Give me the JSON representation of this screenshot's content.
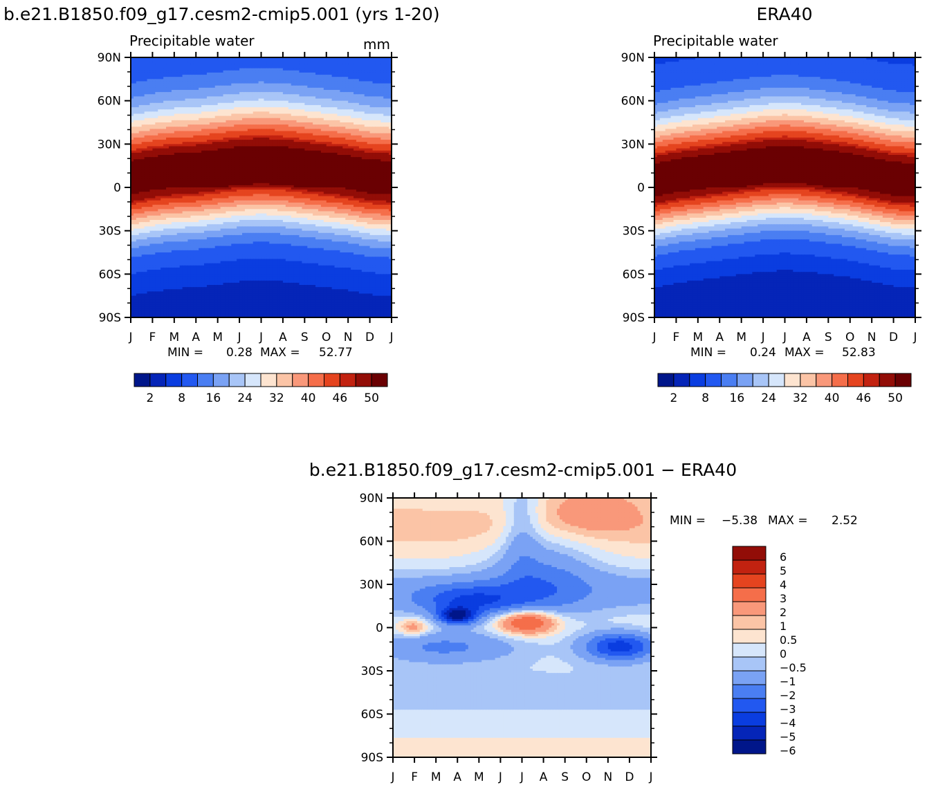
{
  "chart_data": [
    {
      "type": "heatmap",
      "title": "b.e21.B1850.f09_g17.cesm2-cmip5.001 (yrs 1-20)",
      "subtitle": "Precipitable water",
      "units": "mm",
      "x_ticks": [
        "J",
        "F",
        "M",
        "A",
        "M",
        "J",
        "J",
        "A",
        "S",
        "O",
        "N",
        "D",
        "J"
      ],
      "y_ticks": [
        "90N",
        "60N",
        "30N",
        "0",
        "30S",
        "60S",
        "90S"
      ],
      "y_range": [
        -90,
        90
      ],
      "min_label": "MIN =",
      "min_value": "0.28",
      "max_label": "MAX =",
      "max_value": "52.77",
      "field": {
        "peak_lat": [
          4,
          7,
          9,
          10,
          12,
          14,
          15,
          14,
          12,
          10,
          8,
          5,
          4
        ],
        "amp": 51.5,
        "north_width": 30,
        "south_width": 26,
        "polar_north": 4,
        "polar_south": 1.5
      },
      "colorbar": {
        "colors": [
          "#00168a",
          "#0525b8",
          "#0a3de0",
          "#2258f0",
          "#4a7ef2",
          "#7aa2f4",
          "#a8c5f7",
          "#d6e6fb",
          "#fde4d0",
          "#fbc4a6",
          "#f9987a",
          "#f56e4a",
          "#e5441f",
          "#c22210",
          "#920d07",
          "#6a0002"
        ],
        "thresholds": [
          1,
          2,
          4,
          8,
          12,
          16,
          20,
          24,
          28,
          32,
          36,
          40,
          44,
          46,
          50
        ],
        "tick_labels": [
          "2",
          "8",
          "16",
          "24",
          "32",
          "40",
          "46",
          "50"
        ]
      }
    },
    {
      "type": "heatmap",
      "title": "ERA40",
      "subtitle": "Precipitable water",
      "x_ticks": [
        "J",
        "F",
        "M",
        "A",
        "M",
        "J",
        "J",
        "A",
        "S",
        "O",
        "N",
        "D",
        "J"
      ],
      "y_ticks": [
        "90N",
        "60N",
        "30N",
        "0",
        "30S",
        "60S",
        "90S"
      ],
      "y_range": [
        -90,
        90
      ],
      "min_label": "MIN =",
      "min_value": "0.24",
      "max_label": "MAX =",
      "max_value": "52.83",
      "field": {
        "peak_lat": [
          3,
          6,
          8,
          10,
          12,
          14,
          15,
          14,
          12,
          10,
          7,
          4,
          3
        ],
        "amp": 52.5,
        "north_width": 29,
        "south_width": 25,
        "polar_north": 3,
        "polar_south": 1.2
      },
      "colorbar": {
        "colors": [
          "#00168a",
          "#0525b8",
          "#0a3de0",
          "#2258f0",
          "#4a7ef2",
          "#7aa2f4",
          "#a8c5f7",
          "#d6e6fb",
          "#fde4d0",
          "#fbc4a6",
          "#f9987a",
          "#f56e4a",
          "#e5441f",
          "#c22210",
          "#920d07",
          "#6a0002"
        ],
        "thresholds": [
          1,
          2,
          4,
          8,
          12,
          16,
          20,
          24,
          28,
          32,
          36,
          40,
          44,
          46,
          50
        ],
        "tick_labels": [
          "2",
          "8",
          "16",
          "24",
          "32",
          "40",
          "46",
          "50"
        ]
      }
    },
    {
      "type": "heatmap",
      "title": "b.e21.B1850.f09_g17.cesm2-cmip5.001 − ERA40",
      "x_ticks": [
        "J",
        "F",
        "M",
        "A",
        "M",
        "J",
        "J",
        "A",
        "S",
        "O",
        "N",
        "D",
        "J"
      ],
      "y_ticks": [
        "90N",
        "60N",
        "30N",
        "0",
        "30S",
        "60S",
        "90S"
      ],
      "y_range": [
        -90,
        90
      ],
      "min_label": "MIN =",
      "min_value": "−5.38",
      "max_label": "MAX =",
      "max_value": "2.52",
      "colorbar": {
        "colors": [
          "#00168a",
          "#0525b8",
          "#0a3de0",
          "#2258f0",
          "#4a7ef2",
          "#7aa2f4",
          "#a8c5f7",
          "#d6e6fb",
          "#fde4d0",
          "#fbc4a6",
          "#f9987a",
          "#f56e4a",
          "#e5441f",
          "#c22210",
          "#920d07"
        ],
        "thresholds": [
          -6,
          -5,
          -4,
          -3,
          -2,
          -1,
          -0.5,
          0,
          0.5,
          1,
          2,
          3,
          4,
          5,
          6
        ],
        "tick_labels": [
          "6",
          "5",
          "4",
          "3",
          "2",
          "1",
          "0.5",
          "0",
          "−0.5",
          "−1",
          "−2",
          "−3",
          "−4",
          "−5",
          "−6"
        ]
      }
    }
  ]
}
